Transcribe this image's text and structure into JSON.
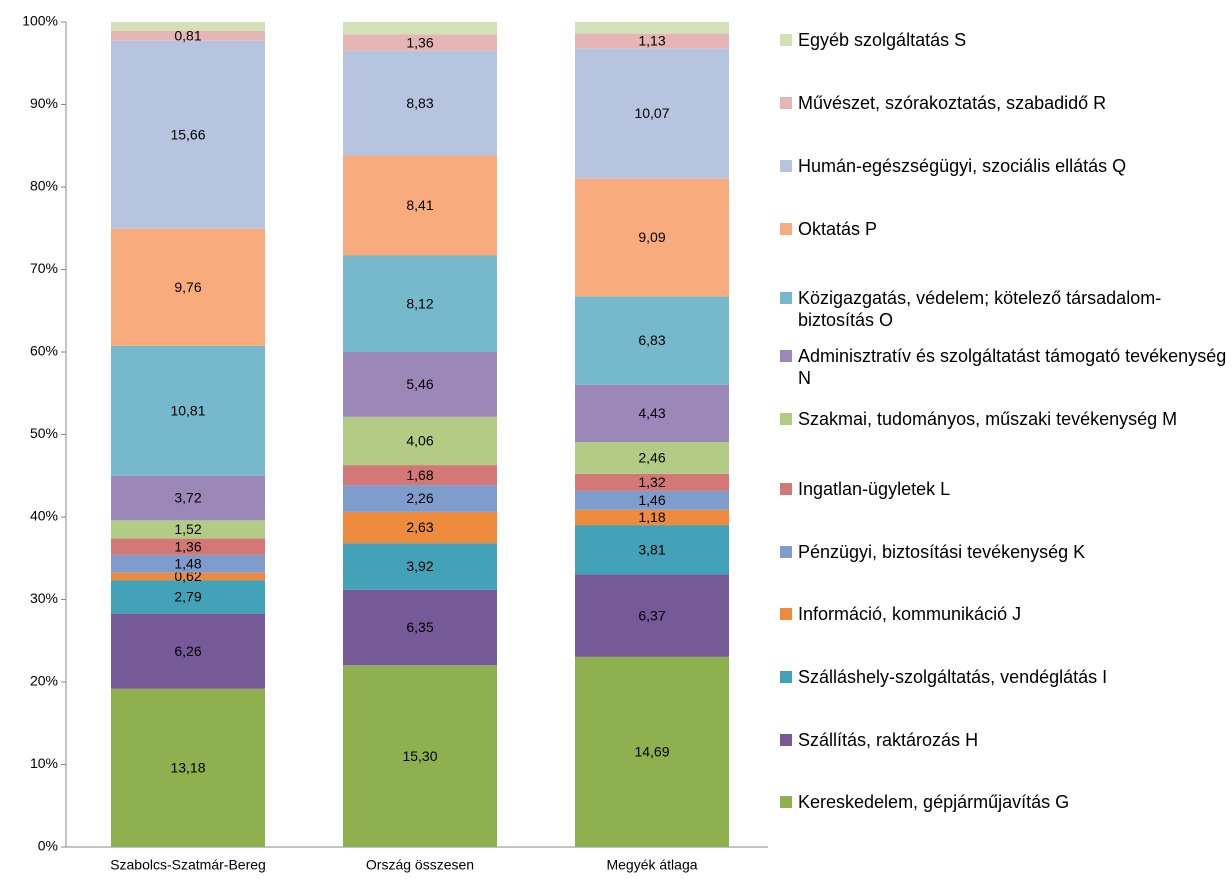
{
  "chart_data": {
    "type": "bar",
    "stacking": "percent",
    "categories": [
      "Szabolcs-Szatmár-Bereg",
      "Ország összesen",
      "Megyék átlaga"
    ],
    "series": [
      {
        "name": "Kereskedelem, gépjárműjavítás G",
        "color": "#8eb04f",
        "values": [
          13.18,
          15.3,
          14.69
        ],
        "value_labels": [
          "13,18",
          "15,30",
          "14,69"
        ]
      },
      {
        "name": "Szállítás, raktározás H",
        "color": "#765a98",
        "values": [
          6.26,
          6.35,
          6.37
        ],
        "value_labels": [
          "6,26",
          "6,35",
          "6,37"
        ]
      },
      {
        "name": "Szálláshely-szolgáltatás, vendéglátás I",
        "color": "#43a1b8",
        "values": [
          2.79,
          3.92,
          3.81
        ],
        "value_labels": [
          "2,79",
          "3,92",
          "3,81"
        ]
      },
      {
        "name": "Információ, kommunikáció J",
        "color": "#ee8b3c",
        "values": [
          0.62,
          2.63,
          1.18
        ],
        "value_labels": [
          "0,62",
          "2,63",
          "1,18"
        ]
      },
      {
        "name": "Pénzügyi, biztosítási tevékenység K",
        "color": "#7f9dcc",
        "values": [
          1.48,
          2.26,
          1.46
        ],
        "value_labels": [
          "1,48",
          "2,26",
          "1,46"
        ]
      },
      {
        "name": "Ingatlan-ügyletek L",
        "color": "#d47777",
        "values": [
          1.36,
          1.68,
          1.32
        ],
        "value_labels": [
          "1,36",
          "1,68",
          "1,32"
        ]
      },
      {
        "name": "Szakmai, tudományos, műszaki tevékenység M",
        "color": "#b2cb85",
        "values": [
          1.52,
          4.06,
          2.46
        ],
        "value_labels": [
          "1,52",
          "4,06",
          "2,46"
        ]
      },
      {
        "name": "Adminisztratív és szolgáltatást támogató tevékenység N",
        "color": "#9c88b8",
        "values": [
          3.72,
          5.46,
          4.43
        ],
        "value_labels": [
          "3,72",
          "5,46",
          "4,43"
        ]
      },
      {
        "name": "Közigazgatás, védelem; kötelező társadalom-biztosítás O",
        "color": "#77b9cc",
        "values": [
          10.81,
          8.12,
          6.83
        ],
        "value_labels": [
          "10,81",
          "8,12",
          "6,83"
        ]
      },
      {
        "name": "Oktatás P",
        "color": "#f8ab7c",
        "values": [
          9.76,
          8.41,
          9.09
        ],
        "value_labels": [
          "9,76",
          "8,41",
          "9,09"
        ]
      },
      {
        "name": "Humán-egészségügyi, szociális ellátás Q",
        "color": "#b7c4df",
        "values": [
          15.66,
          8.83,
          10.07
        ],
        "value_labels": [
          "15,66",
          "8,83",
          "10,07"
        ]
      },
      {
        "name": "Művészet, szórakoztatás, szabadidő R",
        "color": "#e6b6b6",
        "values": [
          0.81,
          1.36,
          1.13
        ],
        "value_labels": [
          "0,81",
          "1,36",
          "1,13"
        ]
      },
      {
        "name": "Egyéb szolgáltatás S",
        "color": "#d3e0b8",
        "values": [
          0.75,
          1.05,
          0.9
        ]
      }
    ],
    "ylim": [
      0,
      100
    ],
    "yticks": [
      {
        "value": 0,
        "label": "0%"
      },
      {
        "value": 10,
        "label": "10%"
      },
      {
        "value": 20,
        "label": "20%"
      },
      {
        "value": 30,
        "label": "30%"
      },
      {
        "value": 40,
        "label": "40%"
      },
      {
        "value": 50,
        "label": "50%"
      },
      {
        "value": 60,
        "label": "60%"
      },
      {
        "value": 70,
        "label": "70%"
      },
      {
        "value": 80,
        "label": "80%"
      },
      {
        "value": 90,
        "label": "90%"
      },
      {
        "value": 100,
        "label": "100%"
      }
    ],
    "legend": "right"
  }
}
